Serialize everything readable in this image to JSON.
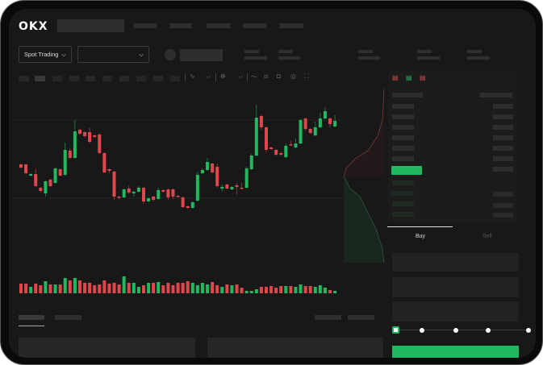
{
  "brand": {
    "logo": "OKX"
  },
  "header": {
    "spot_trading_label": "Spot Trading",
    "chevron": "chevron-down-icon"
  },
  "trade": {
    "buy_label": "Buy",
    "sell_label": "Sell",
    "active_tab": "Buy",
    "leverage_slider_position": 0
  },
  "colors": {
    "up": "#22b85f",
    "down": "#e0474c",
    "background": "#181818",
    "placeholder": "#2e2e2e"
  },
  "toolbar": {
    "icons": [
      "indicator-icon",
      "indicator-dropdown-icon",
      "drawing-icon",
      "line-icon",
      "ruler-icon",
      "camera-icon",
      "settings-icon",
      "fullscreen-icon"
    ]
  },
  "orderbook": {
    "view_icons": [
      "both-sides-icon",
      "bids-only-icon",
      "asks-only-icon"
    ]
  },
  "chart_data": {
    "type": "candlestick",
    "grid": true,
    "ylim": [
      0,
      135
    ],
    "ohlc": [
      [
        57,
        58,
        52,
        53
      ],
      [
        57,
        58,
        45,
        46
      ],
      [
        43,
        46,
        42,
        45
      ],
      [
        45,
        52,
        29,
        30
      ],
      [
        28,
        29,
        22,
        24
      ],
      [
        21,
        37,
        17,
        36
      ],
      [
        38,
        39,
        29,
        30
      ],
      [
        34,
        53,
        33,
        52
      ],
      [
        51,
        52,
        42,
        43
      ],
      [
        44,
        84,
        43,
        75
      ],
      [
        74,
        77,
        64,
        65
      ],
      [
        65,
        112,
        64,
        98
      ],
      [
        100,
        101,
        94,
        95
      ],
      [
        97,
        98,
        90,
        92
      ],
      [
        97,
        102,
        83,
        85
      ],
      [
        93,
        94,
        90,
        91
      ],
      [
        94,
        96,
        70,
        71
      ],
      [
        71,
        72,
        46,
        47
      ],
      [
        51,
        52,
        46,
        49
      ],
      [
        48,
        49,
        13,
        17
      ],
      [
        17,
        18,
        14,
        16
      ],
      [
        16,
        27,
        15,
        26
      ],
      [
        27,
        31,
        20,
        22
      ],
      [
        21,
        24,
        17,
        23
      ],
      [
        23,
        30,
        22,
        28
      ],
      [
        28,
        29,
        8,
        11
      ],
      [
        11,
        16,
        10,
        15
      ],
      [
        17,
        18,
        11,
        13
      ],
      [
        14,
        28,
        13,
        25
      ],
      [
        25,
        26,
        22,
        23
      ],
      [
        26,
        27,
        13,
        16
      ],
      [
        26,
        27,
        14,
        17
      ],
      [
        18,
        19,
        16,
        17
      ],
      [
        16,
        17,
        3,
        4
      ],
      [
        5,
        6,
        2,
        3
      ],
      [
        3,
        11,
        2,
        10
      ],
      [
        12,
        48,
        11,
        44
      ],
      [
        46,
        52,
        45,
        50
      ],
      [
        50,
        65,
        49,
        60
      ],
      [
        58,
        59,
        46,
        47
      ],
      [
        54,
        58,
        28,
        30
      ],
      [
        27,
        32,
        24,
        29
      ],
      [
        32,
        33,
        26,
        27
      ],
      [
        26,
        30,
        25,
        29
      ],
      [
        31,
        34,
        20,
        29
      ],
      [
        28,
        34,
        26,
        27
      ],
      [
        28,
        54,
        27,
        52
      ],
      [
        51,
        70,
        50,
        68
      ],
      [
        68,
        131,
        67,
        115
      ],
      [
        117,
        119,
        100,
        103
      ],
      [
        103,
        104,
        72,
        75
      ],
      [
        78,
        79,
        75,
        76
      ],
      [
        75,
        76,
        68,
        69
      ],
      [
        71,
        73,
        68,
        69
      ],
      [
        66,
        83,
        65,
        80
      ],
      [
        82,
        86,
        80,
        81
      ],
      [
        78,
        89,
        77,
        83
      ],
      [
        83,
        113,
        82,
        112
      ],
      [
        114,
        115,
        99,
        101
      ],
      [
        101,
        102,
        95,
        96
      ],
      [
        93,
        110,
        92,
        103
      ],
      [
        103,
        121,
        102,
        114
      ],
      [
        114,
        128,
        113,
        123
      ],
      [
        114,
        115,
        103,
        107
      ],
      [
        104,
        118,
        103,
        111
      ]
    ],
    "volume": [
      12,
      12,
      8,
      12,
      10,
      15,
      11,
      11,
      11,
      19,
      16,
      19,
      16,
      13,
      13,
      10,
      11,
      16,
      12,
      13,
      11,
      21,
      13,
      13,
      8,
      10,
      13,
      13,
      14,
      10,
      13,
      10,
      13,
      13,
      15,
      13,
      10,
      13,
      11,
      14,
      10,
      8,
      11,
      10,
      11,
      7,
      3,
      3,
      5,
      8,
      8,
      9,
      7,
      9,
      9,
      9,
      8,
      11,
      9,
      9,
      8,
      10,
      7,
      4,
      3
    ]
  }
}
